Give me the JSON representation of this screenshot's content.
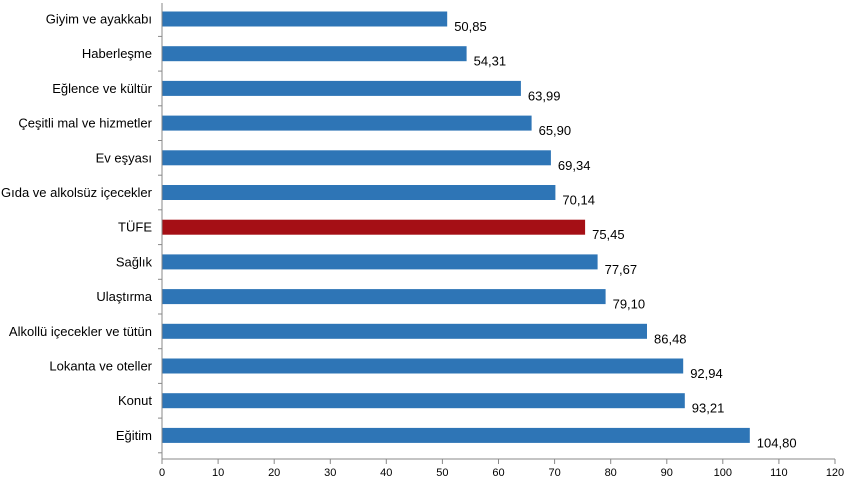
{
  "chart_data": {
    "type": "bar",
    "orientation": "horizontal",
    "categories": [
      "Giyim ve ayakkabı",
      "Haberleşme",
      "Eğlence ve kültür",
      "Çeşitli mal ve hizmetler",
      "Ev eşyası",
      "Gıda ve alkolsüz içecekler",
      "TÜFE",
      "Sağlık",
      "Ulaştırma",
      "Alkollü içecekler ve tütün",
      "Lokanta ve oteller",
      "Konut",
      "Eğitim"
    ],
    "values": [
      50.85,
      54.31,
      63.99,
      65.9,
      69.34,
      70.14,
      75.45,
      77.67,
      79.1,
      86.48,
      92.94,
      93.21,
      104.8
    ],
    "value_labels": [
      "50,85",
      "54,31",
      "63,99",
      "65,90",
      "69,34",
      "70,14",
      "75,45",
      "77,67",
      "79,10",
      "86,48",
      "92,94",
      "93,21",
      "104,80"
    ],
    "bar_color": "#2E75B6",
    "highlight_category": "TÜFE",
    "highlight_color": "#A50F15",
    "xlim": [
      0,
      120
    ],
    "xticks": [
      0,
      10,
      20,
      30,
      40,
      50,
      60,
      70,
      80,
      90,
      100,
      110,
      120
    ],
    "grid": false,
    "legend": "none"
  }
}
